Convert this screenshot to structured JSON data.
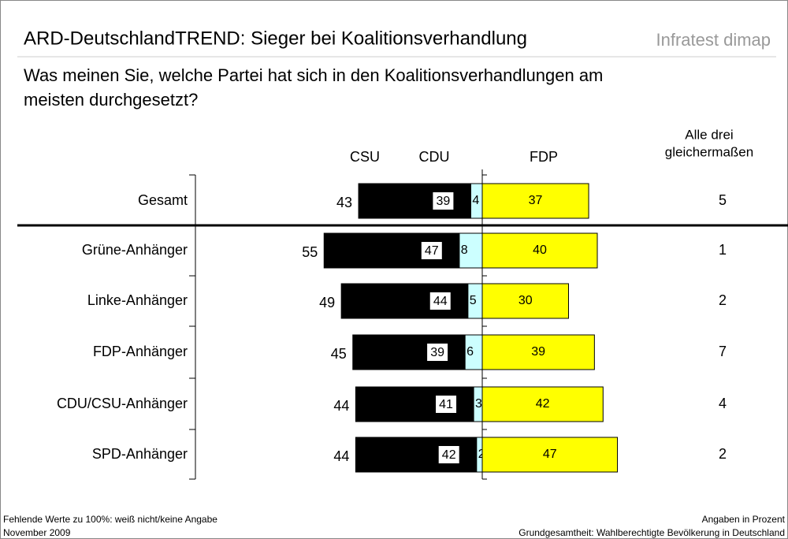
{
  "chart_data": {
    "type": "diverging-bar",
    "title": "ARD-DeutschlandTREND: Sieger bei Koalitionsverhandlung",
    "brand": "Infratest dimap",
    "subtitle": [
      "Was meinen Sie, welche Partei hat sich in den Koalitionsverhandlungen am",
      "meisten durchgesetzt?"
    ],
    "categories": [
      "Gesamt",
      "Grüne-Anhänger",
      "Linke-Anhänger",
      "FDP-Anhänger",
      "CDU/CSU-Anhänger",
      "SPD-Anhänger"
    ],
    "series": [
      {
        "name": "CSU",
        "color": "#ccffff",
        "side": "left",
        "values": [
          4,
          8,
          5,
          6,
          3,
          2
        ]
      },
      {
        "name": "CDU",
        "color": "#000000",
        "side": "left",
        "values": [
          39,
          47,
          44,
          39,
          41,
          42
        ]
      },
      {
        "name": "FDP",
        "color": "#ffff00",
        "side": "right",
        "values": [
          37,
          40,
          30,
          39,
          42,
          47
        ]
      }
    ],
    "union_totals": [
      43,
      55,
      49,
      45,
      44,
      44
    ],
    "all_three": {
      "label": [
        "Alle drei",
        "gleichermaßen"
      ],
      "values": [
        5,
        1,
        2,
        7,
        4,
        2
      ]
    },
    "footnotes_left": [
      "Fehlende Werte zu 100%: weiß nicht/keine Angabe",
      "November 2009"
    ],
    "footnotes_right": [
      "Angaben in Prozent",
      "Grundgesamtheit: Wahlberechtigte Bevölkerung in Deutschland"
    ]
  }
}
